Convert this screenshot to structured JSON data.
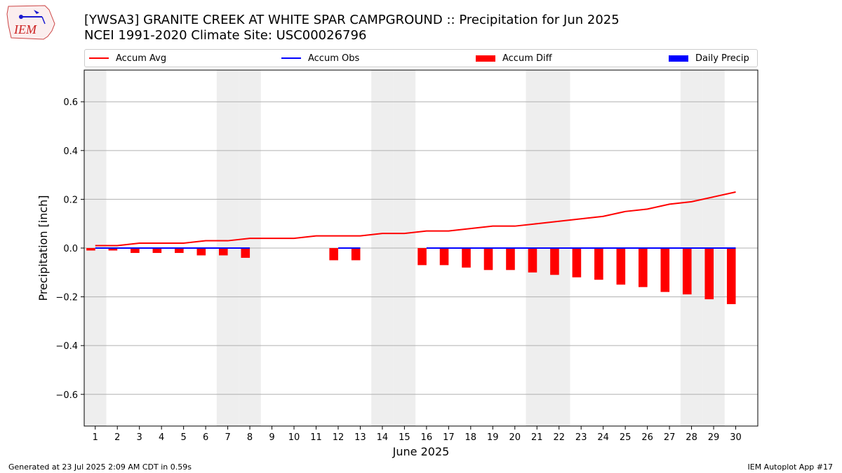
{
  "logo": {
    "text": "IEM"
  },
  "title_line1": "[YWSA3] GRANITE CREEK AT WHITE SPAR CAMPGROUND :: Precipitation for Jun 2025",
  "title_line2": "NCEI 1991-2020 Climate Site: USC00026796",
  "legend": {
    "accum_avg": "Accum Avg",
    "accum_obs": "Accum Obs",
    "accum_diff": "Accum Diff",
    "daily_precip": "Daily Precip"
  },
  "colors": {
    "accum_avg": "#ff0000",
    "accum_obs": "#0000ff",
    "accum_diff": "#ff0000",
    "daily_precip": "#0000ff",
    "weekend_shade": "#eeeeee",
    "grid": "#b0b0b0"
  },
  "footer_left": "Generated at 23 Jul 2025 2:09 AM CDT in 0.59s",
  "footer_right": "IEM Autoplot App #17",
  "chart_data": {
    "type": "bar",
    "xlabel": "June 2025",
    "ylabel": "Precipitation [inch]",
    "ylim": [
      -0.73,
      0.73
    ],
    "xlim": [
      0.5,
      31
    ],
    "yticks": [
      -0.6,
      -0.4,
      -0.2,
      0.0,
      0.2,
      0.4,
      0.6
    ],
    "ytick_labels": [
      "−0.6",
      "−0.4",
      "−0.2",
      "0.0",
      "0.2",
      "0.4",
      "0.6"
    ],
    "categories": [
      1,
      2,
      3,
      4,
      5,
      6,
      7,
      8,
      9,
      10,
      11,
      12,
      13,
      14,
      15,
      16,
      17,
      18,
      19,
      20,
      21,
      22,
      23,
      24,
      25,
      26,
      27,
      28,
      29,
      30
    ],
    "grid": "horizontal",
    "legend_position": "top",
    "shaded_days": [
      1,
      7,
      8,
      14,
      15,
      21,
      22,
      28,
      29
    ],
    "series": [
      {
        "name": "Accum Avg",
        "type": "line",
        "values": [
          0.01,
          0.01,
          0.02,
          0.02,
          0.02,
          0.03,
          0.03,
          0.04,
          0.04,
          0.04,
          0.05,
          0.05,
          0.05,
          0.06,
          0.06,
          0.07,
          0.07,
          0.08,
          0.09,
          0.09,
          0.1,
          0.11,
          0.12,
          0.13,
          0.15,
          0.16,
          0.18,
          0.19,
          0.21,
          0.23
        ]
      },
      {
        "name": "Accum Obs",
        "type": "line",
        "segments": [
          {
            "x": [
              1,
              8
            ],
            "values": [
              0,
              0
            ]
          },
          {
            "x": [
              12,
              13
            ],
            "values": [
              0,
              0
            ]
          },
          {
            "x": [
              16,
              30
            ],
            "values": [
              0,
              0
            ]
          }
        ]
      },
      {
        "name": "Accum Diff",
        "type": "bar",
        "values": [
          -0.01,
          -0.01,
          -0.02,
          -0.02,
          -0.02,
          -0.03,
          -0.03,
          -0.04,
          null,
          null,
          null,
          -0.05,
          -0.05,
          null,
          null,
          -0.07,
          -0.07,
          -0.08,
          -0.09,
          -0.09,
          -0.1,
          -0.11,
          -0.12,
          -0.13,
          -0.15,
          -0.16,
          -0.18,
          -0.19,
          -0.21,
          -0.23
        ]
      },
      {
        "name": "Daily Precip",
        "type": "bar",
        "values": [
          0,
          0,
          0,
          0,
          0,
          0,
          0,
          0,
          null,
          null,
          null,
          0,
          0,
          null,
          null,
          0,
          0,
          0,
          0,
          0,
          0,
          0,
          0,
          0,
          0,
          0,
          0,
          0,
          0,
          0
        ]
      }
    ]
  }
}
